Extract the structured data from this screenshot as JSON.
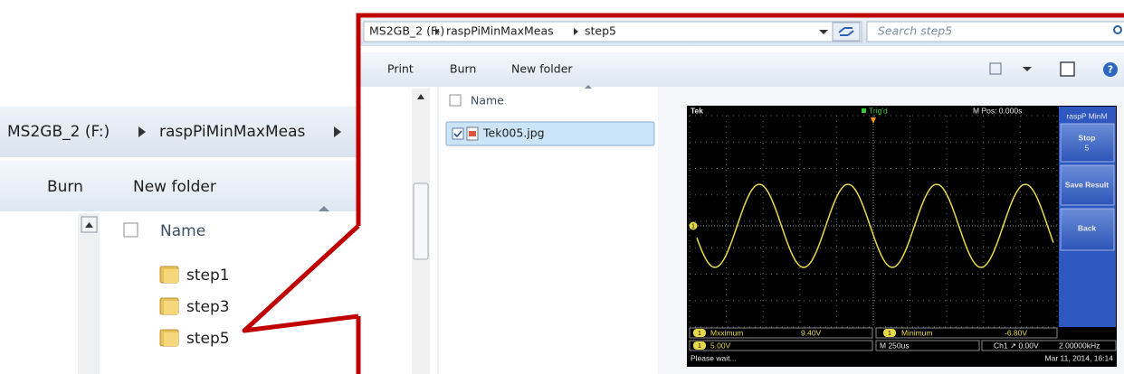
{
  "left_window": {
    "breadcrumb": [
      "MS2GB_2 (F:)",
      "raspPiMinMaxMeas"
    ],
    "toolbar": [
      "Burn",
      "New folder"
    ],
    "column_header": "Name",
    "items": [
      "step1",
      "step3",
      "step5"
    ]
  },
  "right_window": {
    "breadcrumb": [
      "MS2GB_2 (F:)",
      "raspPiMinMaxMeas",
      "step5"
    ],
    "search_placeholder": "Search step5",
    "toolbar": [
      "Print",
      "Burn",
      "New folder"
    ],
    "column_header": "Name",
    "items": [
      "Tek005.jpg"
    ],
    "preview": {
      "brand": "Tek",
      "trigger_status": "Trig'd",
      "position": "M Pos: 0.000s",
      "menu_title": "raspP MinM",
      "menu_buttons": [
        "Stop",
        "Save Result",
        "Back"
      ],
      "menu_stop_value": "5",
      "channel_marker": "1",
      "measurements": [
        {
          "label": "Mxximum",
          "value": "9.40V"
        },
        {
          "label": "Minimum",
          "value": "-6.80V"
        }
      ],
      "channel_scale": "5.00V",
      "timebase": "M 250us",
      "trigger": "Ch1 ↗ 0.00V",
      "frequency": "2.00000kHz",
      "status": "Please wait...",
      "date": "Mar 11, 2014, 16:14"
    }
  }
}
